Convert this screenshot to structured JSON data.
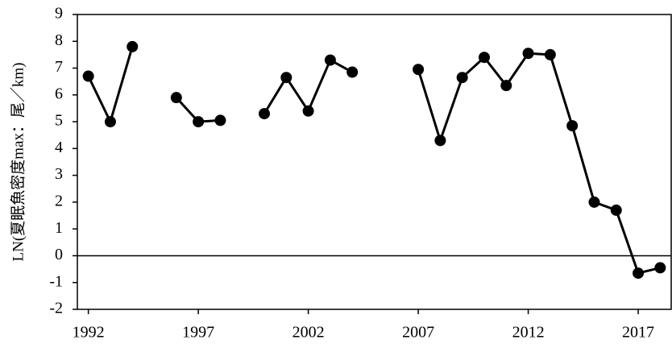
{
  "chart_data": {
    "type": "line",
    "y_label": "LN(夏眠魚密度max：尾／km)",
    "x": [
      1992,
      1993,
      1994,
      1995,
      1996,
      1997,
      1998,
      1999,
      2000,
      2001,
      2002,
      2003,
      2004,
      2005,
      2006,
      2007,
      2008,
      2009,
      2010,
      2011,
      2012,
      2013,
      2014,
      2015,
      2016,
      2017,
      2018
    ],
    "series": [
      {
        "color": "#000000",
        "values": [
          6.7,
          5.0,
          7.8,
          null,
          5.9,
          5.0,
          5.05,
          null,
          5.3,
          6.65,
          5.4,
          7.3,
          6.85,
          null,
          null,
          6.95,
          4.3,
          6.65,
          7.4,
          6.35,
          7.55,
          7.5,
          4.85,
          2.0,
          1.7,
          -0.65,
          -0.45
        ]
      }
    ],
    "xlim": [
      1991.5,
      2018.5
    ],
    "xticks": [
      1992,
      1997,
      2002,
      2007,
      2012,
      2017
    ],
    "ylim": [
      -2,
      9
    ],
    "yticks": [
      -2,
      -1,
      0,
      1,
      2,
      3,
      4,
      5,
      6,
      7,
      8,
      9
    ]
  }
}
